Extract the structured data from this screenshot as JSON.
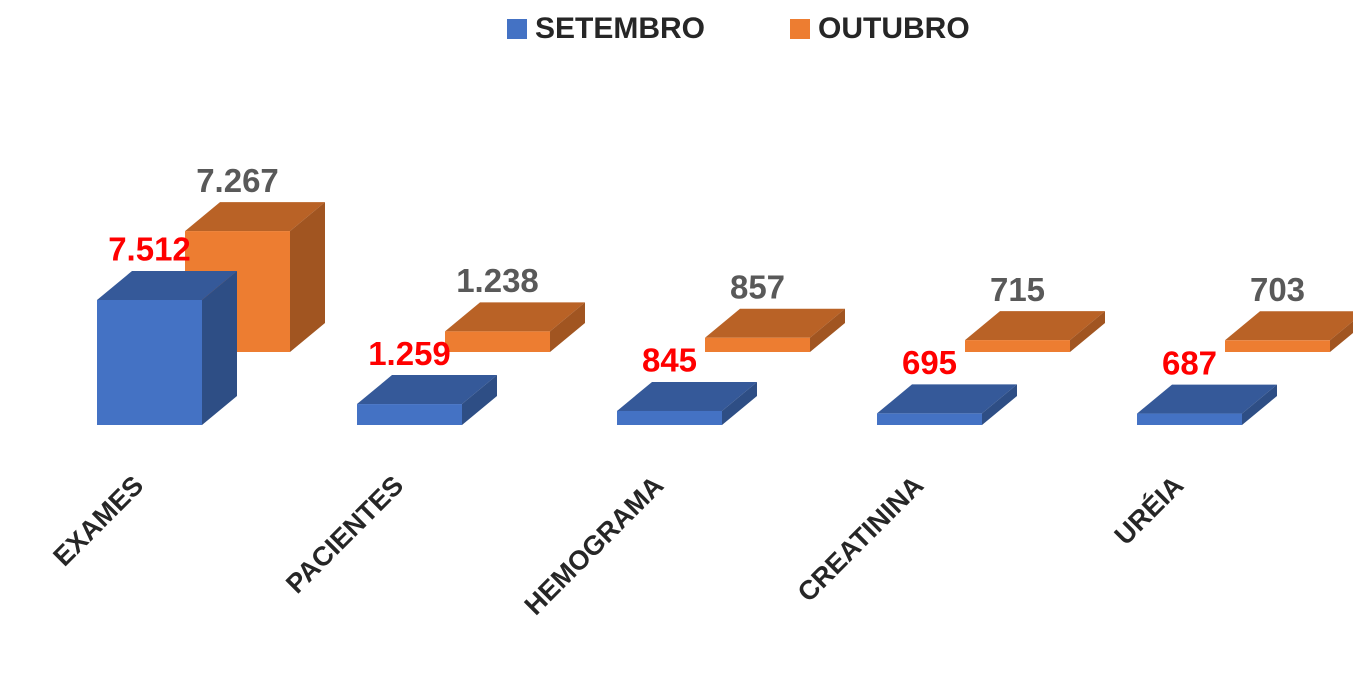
{
  "chart_data": {
    "type": "bar3d",
    "categories": [
      "EXAMES",
      "PACIENTES",
      "HEMOGRAMA",
      "CREATININA",
      "URÉIA"
    ],
    "series": [
      {
        "name": "SETEMBRO",
        "color": "#4472c4",
        "label_color": "#ff0000",
        "values": [
          7512,
          1259,
          845,
          695,
          687
        ],
        "value_labels": [
          "7.512",
          "1.259",
          "845",
          "695",
          "687"
        ]
      },
      {
        "name": "OUTUBRO",
        "color": "#ed7d31",
        "label_color": "#595959",
        "values": [
          7267,
          1238,
          857,
          715,
          703
        ],
        "value_labels": [
          "7.267",
          "1.238",
          "857",
          "715",
          "703"
        ]
      }
    ],
    "legend": "top"
  }
}
